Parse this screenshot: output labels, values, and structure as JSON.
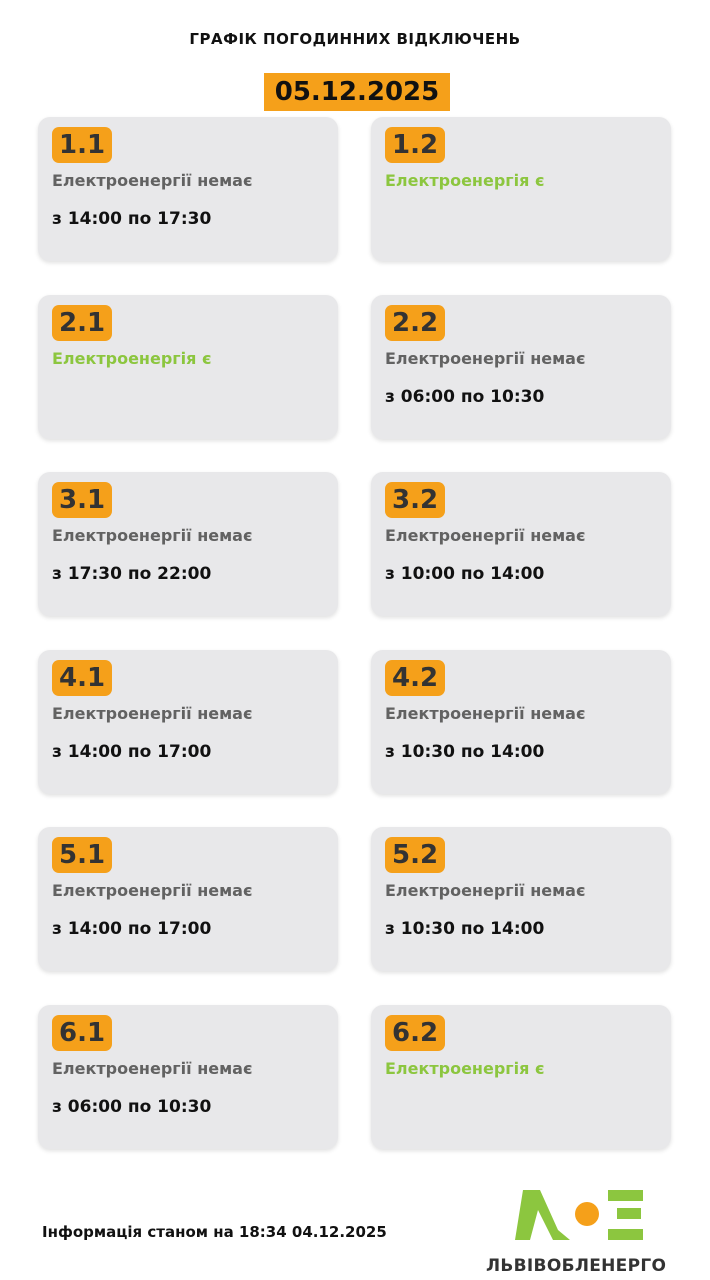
{
  "title": "ГРАФІК ПОГОДИННИХ ВІДКЛЮЧЕНЬ",
  "date": "05.12.2025",
  "groups": [
    {
      "id": "1.1",
      "status": "Електроенергії немає",
      "on": false,
      "time": "з 14:00 по 17:30"
    },
    {
      "id": "1.2",
      "status": "Електроенергія є",
      "on": true,
      "time": ""
    },
    {
      "id": "2.1",
      "status": "Електроенергія є",
      "on": true,
      "time": ""
    },
    {
      "id": "2.2",
      "status": "Електроенергії немає",
      "on": false,
      "time": "з 06:00 по 10:30"
    },
    {
      "id": "3.1",
      "status": "Електроенергії немає",
      "on": false,
      "time": "з 17:30 по 22:00"
    },
    {
      "id": "3.2",
      "status": "Електроенергії немає",
      "on": false,
      "time": "з 10:00 по 14:00"
    },
    {
      "id": "4.1",
      "status": "Електроенергії немає",
      "on": false,
      "time": "з 14:00 по 17:00"
    },
    {
      "id": "4.2",
      "status": "Електроенергії немає",
      "on": false,
      "time": "з 10:30 по 14:00"
    },
    {
      "id": "5.1",
      "status": "Електроенергії немає",
      "on": false,
      "time": "з 14:00 по 17:00"
    },
    {
      "id": "5.2",
      "status": "Електроенергії немає",
      "on": false,
      "time": "з 10:30 по 14:00"
    },
    {
      "id": "6.1",
      "status": "Електроенергії немає",
      "on": false,
      "time": "з 06:00 по 10:30"
    },
    {
      "id": "6.2",
      "status": "Електроенергія є",
      "on": true,
      "time": ""
    }
  ],
  "footer": "Інформація станом на 18:34 04.12.2025",
  "logo": {
    "text": "ЛЬВІВОБЛЕНЕРГО",
    "colors": {
      "green": "#8cc63f",
      "orange": "#f5a01a"
    }
  },
  "colors": {
    "accent": "#f5a01a",
    "on": "#8cc63f",
    "off": "#626262"
  }
}
